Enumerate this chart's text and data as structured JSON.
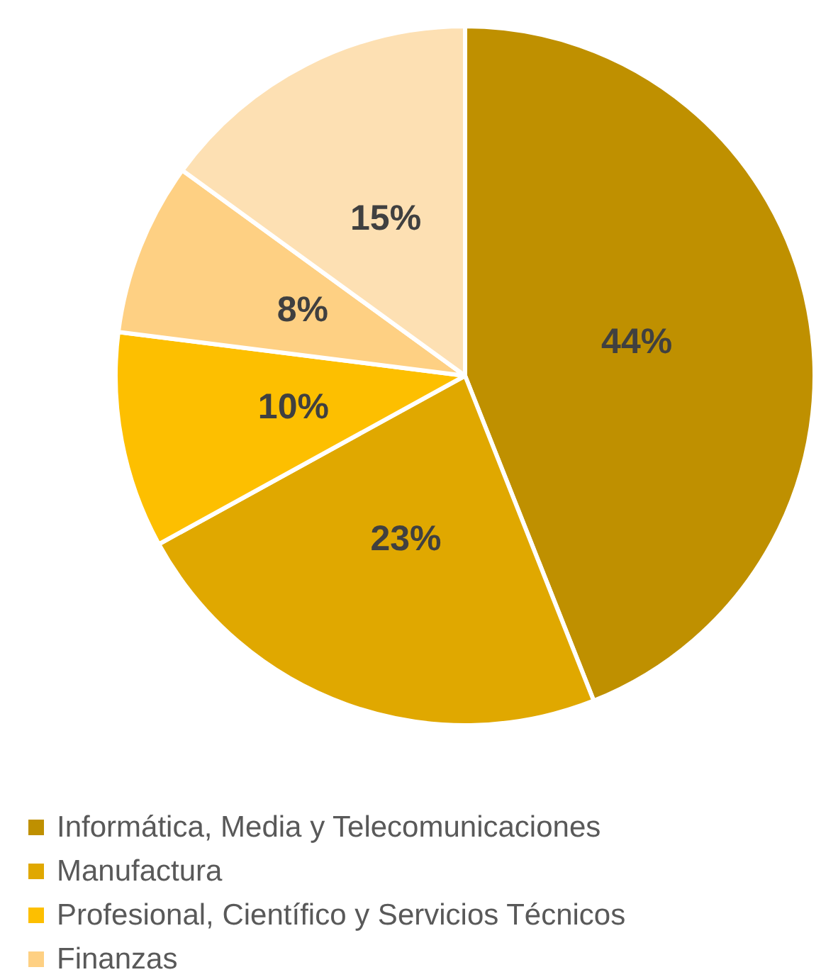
{
  "chart_data": {
    "type": "pie",
    "categories": [
      "Informática, Media y Telecomunicaciones",
      "Manufactura",
      "Profesional, Científico y Servicios Técnicos",
      "Finanzas",
      null
    ],
    "values": [
      44,
      23,
      10,
      8,
      15
    ],
    "colors": [
      "#bf9000",
      "#e0a800",
      "#fdbf00",
      "#fed083",
      "#fde0b3"
    ],
    "value_labels": [
      "44%",
      "23%",
      "10%",
      "8%",
      "15%"
    ],
    "legend": "bottom"
  }
}
